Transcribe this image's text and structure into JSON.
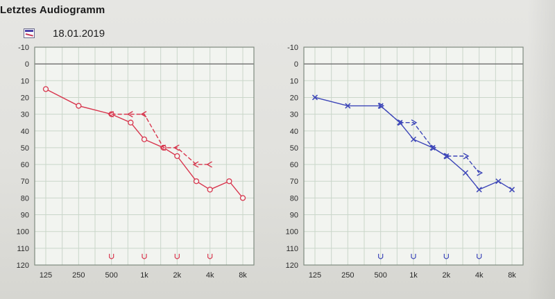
{
  "header": {
    "title": "Letztes Audiogramm",
    "date": "18.01.2019",
    "date_icon": "audiogram-icon"
  },
  "colors": {
    "right_ear": "#d8354d",
    "left_ear": "#3c45b8",
    "grid_line": "#c9d6c9",
    "zero_line": "#6d6d6d",
    "frame": "#7e8a7e"
  },
  "chart_data": [
    {
      "type": "line",
      "ear": "right",
      "x_ticks": [
        "125",
        "250",
        "500",
        "1k",
        "2k",
        "4k",
        "8k"
      ],
      "y_ticks": [
        "-10",
        "0",
        "10",
        "20",
        "30",
        "40",
        "50",
        "60",
        "70",
        "80",
        "90",
        "100",
        "110",
        "120"
      ],
      "ylim": [
        -10,
        120
      ],
      "y_inverted": true,
      "grid": true,
      "series": [
        {
          "symbol": "O",
          "x": [
            125,
            250,
            500,
            750,
            1000,
            1500,
            2000,
            3000,
            4000,
            6000,
            8000
          ],
          "y": [
            15,
            25,
            30,
            35,
            45,
            50,
            55,
            70,
            75,
            70,
            80
          ]
        },
        {
          "symbol": "<",
          "x": [
            500,
            750,
            1000,
            1500,
            2000,
            3000,
            4000
          ],
          "y": [
            30,
            30,
            30,
            50,
            50,
            60,
            60
          ]
        },
        {
          "symbol": "U",
          "x": [
            500,
            1000,
            2000,
            4000
          ],
          "y": [
            115,
            115,
            115,
            115
          ]
        }
      ]
    },
    {
      "type": "line",
      "ear": "left",
      "x_ticks": [
        "125",
        "250",
        "500",
        "1k",
        "2k",
        "4k",
        "8k"
      ],
      "y_ticks": [
        "-10",
        "0",
        "10",
        "20",
        "30",
        "40",
        "50",
        "60",
        "70",
        "80",
        "90",
        "100",
        "110",
        "120"
      ],
      "ylim": [
        -10,
        120
      ],
      "y_inverted": true,
      "grid": true,
      "series": [
        {
          "symbol": "X",
          "x": [
            125,
            250,
            500,
            750,
            1000,
            1500,
            2000,
            3000,
            4000,
            6000,
            8000
          ],
          "y": [
            20,
            25,
            25,
            35,
            45,
            50,
            55,
            65,
            75,
            70,
            75
          ]
        },
        {
          "symbol": ">",
          "x": [
            500,
            750,
            1000,
            1500,
            2000,
            3000,
            4000
          ],
          "y": [
            25,
            35,
            35,
            50,
            55,
            55,
            65
          ]
        },
        {
          "symbol": "U",
          "x": [
            500,
            1000,
            2000,
            4000
          ],
          "y": [
            115,
            115,
            115,
            115
          ]
        }
      ]
    }
  ]
}
